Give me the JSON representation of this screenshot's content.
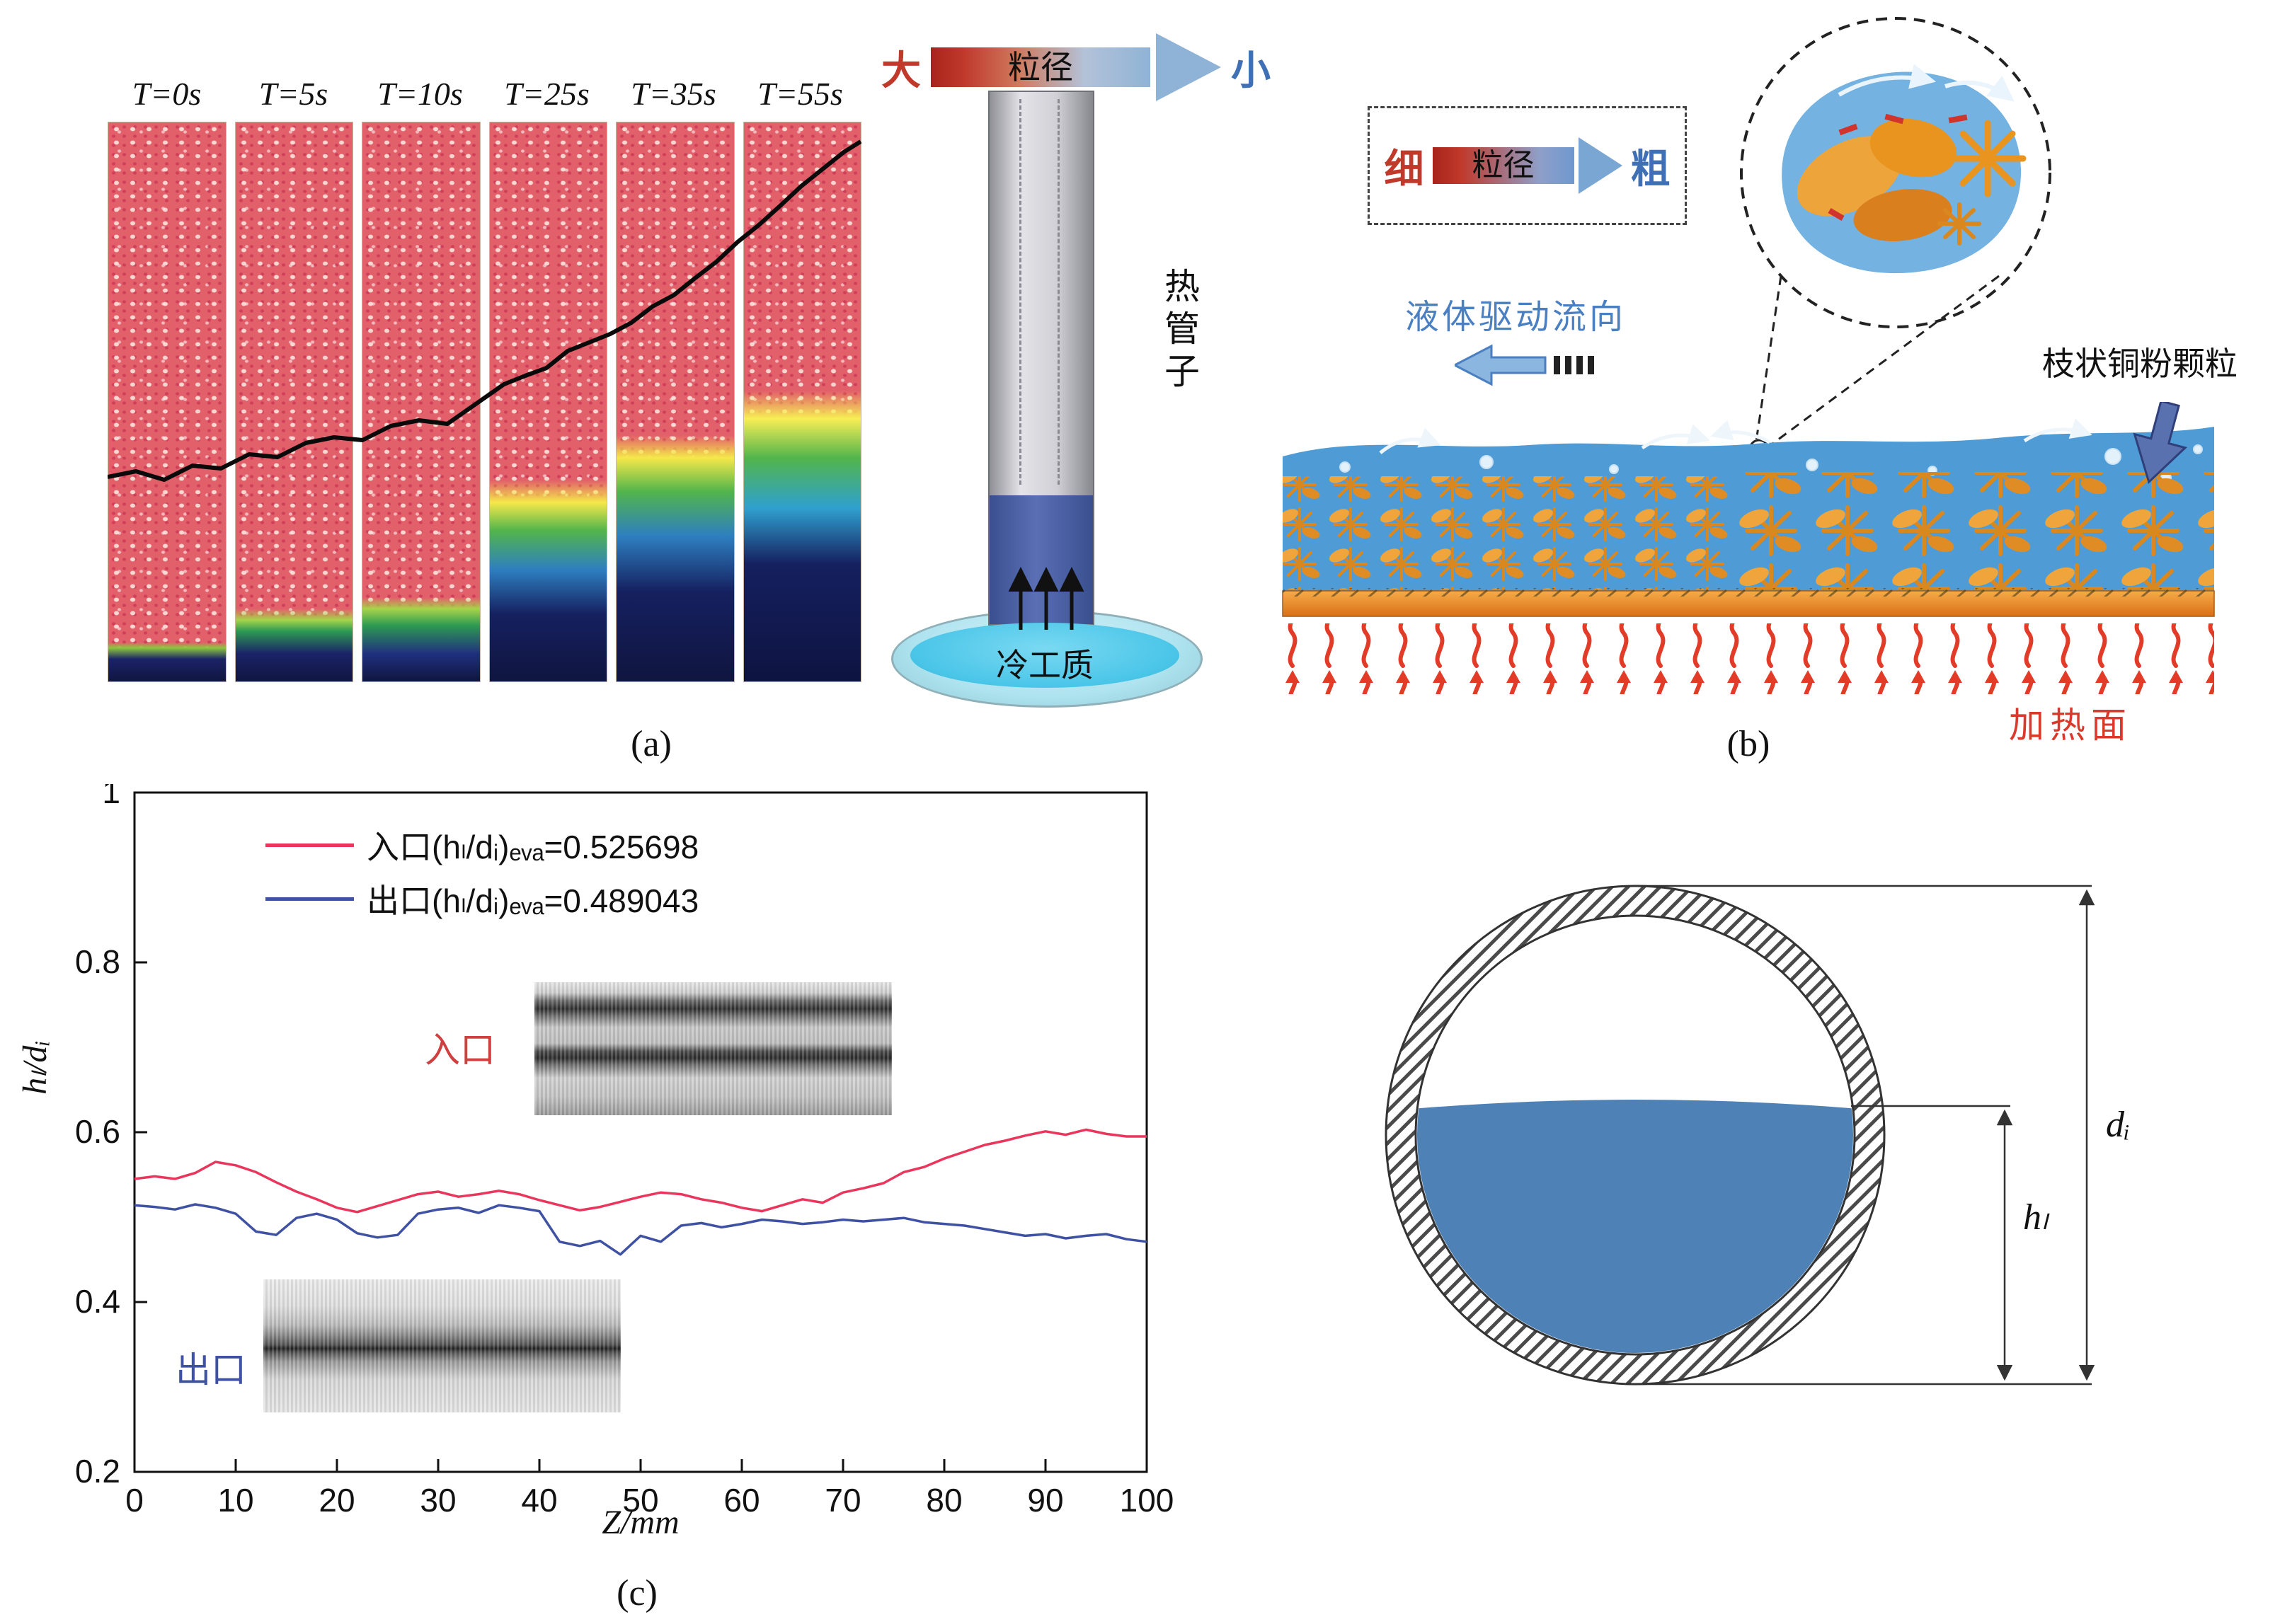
{
  "figure": {
    "captions": {
      "a": "(a)",
      "b": "(b)",
      "c": "(c)"
    }
  },
  "panel_a": {
    "time_labels": [
      "T=0s",
      "T=5s",
      "T=10s",
      "T=25s",
      "T=35s",
      "T=55s"
    ],
    "size_arrow": {
      "left": "大",
      "center": "粒径",
      "right": "小"
    },
    "tube_label": "热管子",
    "dish_label": "冷工质"
  },
  "panel_b": {
    "size_arrow": {
      "left": "细",
      "center": "粒径",
      "right": "粗"
    },
    "flow_label": "液体驱动流向",
    "particle_label": "枝状铜粉颗粒",
    "heating_label": "加热面"
  },
  "panel_c": {
    "inlet_label": "入口",
    "outlet_label": "出口"
  },
  "cross_section": {
    "diameter_label": "dᵢ",
    "height_label": "hₗ"
  },
  "colors": {
    "red_accent": "#d93a2b",
    "blue_accent": "#3f6fb5",
    "series_inlet": "#e8365d",
    "series_outlet": "#3f51a3",
    "liquid_blue": "#4f9bd5",
    "copper_orange": "#e8962f",
    "heat_red": "#e23b28"
  },
  "chart_data": {
    "type": "line",
    "title": "",
    "xlabel": "Z/mm",
    "ylabel": "hₗ/dᵢ",
    "xlim": [
      0,
      100
    ],
    "ylim": [
      0.2,
      1
    ],
    "x_ticks": [
      0,
      10,
      20,
      30,
      40,
      50,
      60,
      70,
      80,
      90,
      100
    ],
    "y_ticks": [
      0.2,
      0.4,
      0.6,
      0.8,
      1
    ],
    "grid": false,
    "legend_position": "top-left",
    "series": [
      {
        "name": "入口(hₗ/dᵢ)ₑᵥₐ=0.525698",
        "color": "#e8365d",
        "x": [
          0,
          2,
          4,
          6,
          8,
          10,
          12,
          14,
          16,
          18,
          20,
          22,
          24,
          26,
          28,
          30,
          32,
          34,
          36,
          38,
          40,
          42,
          44,
          46,
          48,
          50,
          52,
          54,
          56,
          58,
          60,
          62,
          64,
          66,
          68,
          70,
          72,
          74,
          76,
          78,
          80,
          82,
          84,
          86,
          88,
          90,
          92,
          94,
          96,
          98,
          100
        ],
        "y": [
          0.545,
          0.548,
          0.545,
          0.552,
          0.565,
          0.561,
          0.553,
          0.541,
          0.53,
          0.521,
          0.511,
          0.506,
          0.513,
          0.52,
          0.527,
          0.53,
          0.524,
          0.527,
          0.531,
          0.527,
          0.52,
          0.514,
          0.508,
          0.512,
          0.518,
          0.524,
          0.529,
          0.527,
          0.521,
          0.517,
          0.511,
          0.507,
          0.514,
          0.521,
          0.517,
          0.529,
          0.534,
          0.54,
          0.553,
          0.559,
          0.569,
          0.577,
          0.585,
          0.59,
          0.596,
          0.601,
          0.597,
          0.603,
          0.598,
          0.595,
          0.595
        ]
      },
      {
        "name": "出口(hₗ/dᵢ)ₑᵥₐ=0.489043",
        "color": "#3f51a3",
        "x": [
          0,
          2,
          4,
          6,
          8,
          10,
          12,
          14,
          16,
          18,
          20,
          22,
          24,
          26,
          28,
          30,
          32,
          34,
          36,
          38,
          40,
          42,
          44,
          46,
          48,
          50,
          52,
          54,
          56,
          58,
          60,
          62,
          64,
          66,
          68,
          70,
          72,
          74,
          76,
          78,
          80,
          82,
          84,
          86,
          88,
          90,
          92,
          94,
          96,
          98,
          100
        ],
        "y": [
          0.514,
          0.512,
          0.509,
          0.515,
          0.511,
          0.504,
          0.483,
          0.479,
          0.499,
          0.504,
          0.497,
          0.481,
          0.476,
          0.479,
          0.504,
          0.509,
          0.511,
          0.505,
          0.514,
          0.511,
          0.507,
          0.471,
          0.466,
          0.472,
          0.456,
          0.478,
          0.471,
          0.49,
          0.493,
          0.488,
          0.492,
          0.497,
          0.495,
          0.492,
          0.494,
          0.497,
          0.495,
          0.497,
          0.499,
          0.494,
          0.492,
          0.49,
          0.486,
          0.482,
          0.478,
          0.48,
          0.475,
          0.478,
          0.48,
          0.474,
          0.471
        ]
      }
    ]
  }
}
